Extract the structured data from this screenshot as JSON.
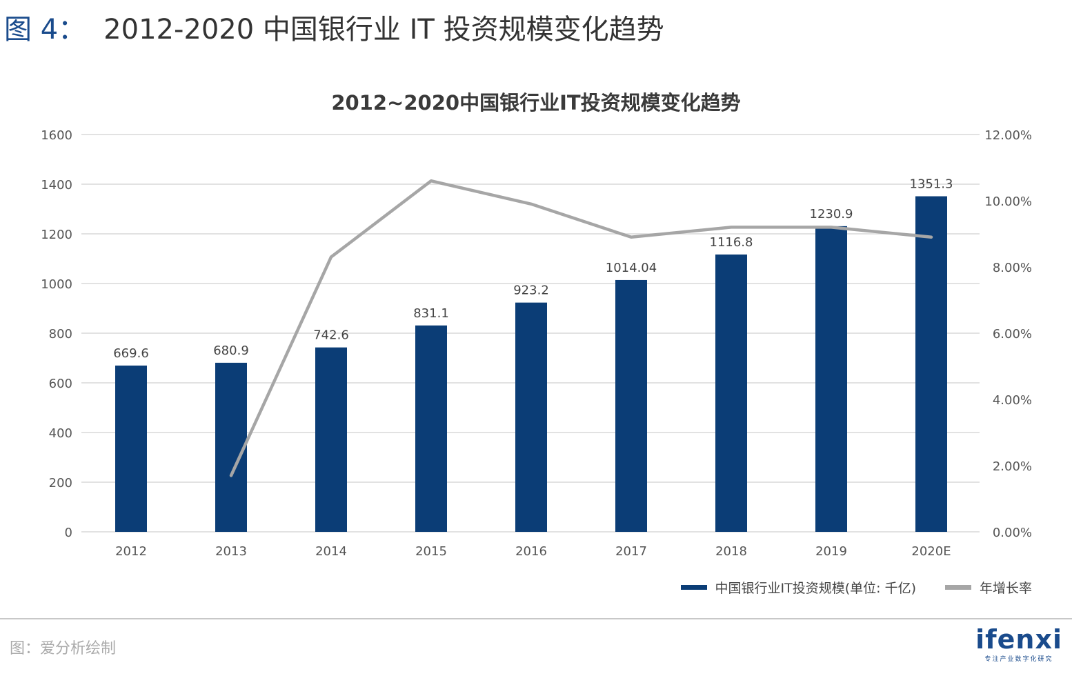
{
  "header": {
    "figure_label": "图 4：",
    "title": "2012-2020 中国银行业 IT 投资规模变化趋势"
  },
  "chart_data": {
    "type": "bar",
    "title": "2012~2020中国银行业IT投资规模变化趋势",
    "categories": [
      "2012",
      "2013",
      "2014",
      "2015",
      "2016",
      "2017",
      "2018",
      "2019",
      "2020E"
    ],
    "y_left": {
      "ylim": [
        0,
        1600
      ],
      "ticks": [
        "0",
        "200",
        "400",
        "600",
        "800",
        "1000",
        "1200",
        "1400",
        "1600"
      ]
    },
    "y_right": {
      "ylim": [
        0,
        12
      ],
      "ticks": [
        "0.00%",
        "2.00%",
        "4.00%",
        "6.00%",
        "8.00%",
        "10.00%",
        "12.00%"
      ]
    },
    "series": [
      {
        "name": "中国银行业IT投资规模(单位: 千亿)",
        "type": "bar",
        "axis": "left",
        "color": "#0b3d76",
        "values": [
          669.6,
          680.9,
          742.6,
          831.1,
          923.2,
          1014.04,
          1116.8,
          1230.9,
          1351.3
        ],
        "labels": [
          "669.6",
          "680.9",
          "742.6",
          "831.1",
          "923.2",
          "1014.04",
          "1116.8",
          "1230.9",
          "1351.3"
        ]
      },
      {
        "name": "年增长率",
        "type": "line",
        "axis": "right",
        "color": "#a6a6a6",
        "values": [
          null,
          1.7,
          8.3,
          10.6,
          9.9,
          8.9,
          9.2,
          9.2,
          8.9
        ]
      }
    ],
    "grid": true,
    "legend_position": "bottom-right"
  },
  "footer": {
    "source": "图：爱分析绘制",
    "logo": "ifenxi",
    "logo_tagline": "专注产业数字化研究"
  },
  "colors": {
    "bar": "#0b3d76",
    "line": "#a6a6a6",
    "accent": "#1a4b8c",
    "grid": "#d9d9d9"
  }
}
